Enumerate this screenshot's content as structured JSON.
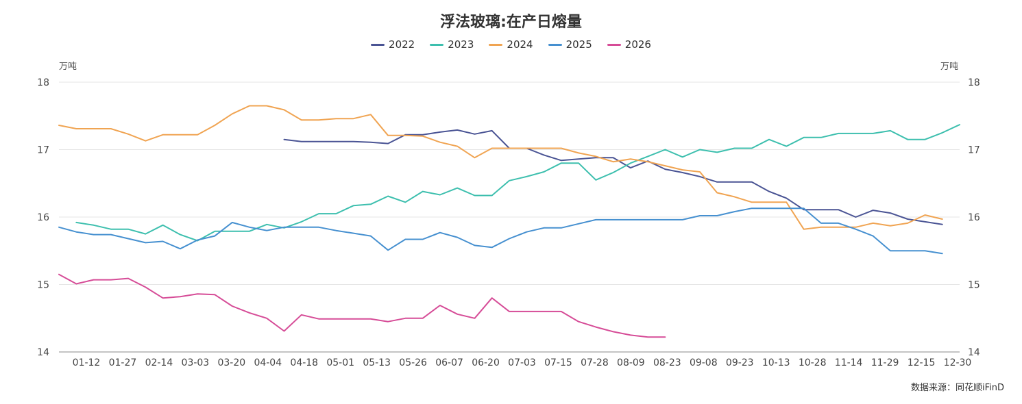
{
  "chart_data": {
    "type": "line",
    "title": "浮法玻璃:在产日熔量",
    "unit_left": "万吨",
    "unit_right": "万吨",
    "source": "数据来源：同花顺iFinD",
    "ylim": [
      14,
      18
    ],
    "yticks": [
      14,
      15,
      16,
      17,
      18
    ],
    "grid": "horizontal",
    "legend_position": "top-center",
    "xtick_labels": [
      "01-12",
      "01-27",
      "02-14",
      "03-03",
      "03-20",
      "04-04",
      "04-18",
      "05-01",
      "05-13",
      "05-26",
      "06-07",
      "06-20",
      "07-03",
      "07-15",
      "07-28",
      "08-09",
      "08-23",
      "09-08",
      "09-23",
      "10-13",
      "10-28",
      "11-14",
      "11-29",
      "12-15",
      "12-30"
    ],
    "series": [
      {
        "name": "2022",
        "color": "#4a5494",
        "points": [
          [
            13,
            17.15
          ],
          [
            14,
            17.12
          ],
          [
            15,
            17.12
          ],
          [
            16,
            17.12
          ],
          [
            17,
            17.12
          ],
          [
            18,
            17.11
          ],
          [
            19,
            17.09
          ],
          [
            20,
            17.22
          ],
          [
            21,
            17.22
          ],
          [
            22,
            17.26
          ],
          [
            23,
            17.29
          ],
          [
            24,
            17.23
          ],
          [
            25,
            17.28
          ],
          [
            26,
            17.02
          ],
          [
            27,
            17.02
          ],
          [
            28,
            16.92
          ],
          [
            29,
            16.84
          ],
          [
            30,
            16.86
          ],
          [
            31,
            16.88
          ],
          [
            32,
            16.88
          ],
          [
            33,
            16.73
          ],
          [
            34,
            16.83
          ],
          [
            35,
            16.71
          ],
          [
            36,
            16.66
          ],
          [
            37,
            16.6
          ],
          [
            38,
            16.52
          ],
          [
            39,
            16.52
          ],
          [
            40,
            16.52
          ],
          [
            41,
            16.38
          ],
          [
            42,
            16.28
          ],
          [
            43,
            16.11
          ],
          [
            44,
            16.11
          ],
          [
            45,
            16.11
          ],
          [
            46,
            16.0
          ],
          [
            47,
            16.1
          ],
          [
            48,
            16.06
          ],
          [
            49,
            15.97
          ],
          [
            50,
            15.93
          ],
          [
            51,
            15.89
          ]
        ]
      },
      {
        "name": "2023",
        "color": "#3dbfae",
        "points": [
          [
            1,
            15.92
          ],
          [
            2,
            15.88
          ],
          [
            3,
            15.82
          ],
          [
            4,
            15.82
          ],
          [
            5,
            15.75
          ],
          [
            6,
            15.88
          ],
          [
            7,
            15.74
          ],
          [
            8,
            15.65
          ],
          [
            9,
            15.79
          ],
          [
            10,
            15.79
          ],
          [
            11,
            15.79
          ],
          [
            12,
            15.89
          ],
          [
            13,
            15.84
          ],
          [
            14,
            15.93
          ],
          [
            15,
            16.05
          ],
          [
            16,
            16.05
          ],
          [
            17,
            16.17
          ],
          [
            18,
            16.19
          ],
          [
            19,
            16.31
          ],
          [
            20,
            16.22
          ],
          [
            21,
            16.38
          ],
          [
            22,
            16.33
          ],
          [
            23,
            16.43
          ],
          [
            24,
            16.32
          ],
          [
            25,
            16.32
          ],
          [
            26,
            16.54
          ],
          [
            27,
            16.6
          ],
          [
            28,
            16.67
          ],
          [
            29,
            16.8
          ],
          [
            30,
            16.8
          ],
          [
            31,
            16.55
          ],
          [
            32,
            16.66
          ],
          [
            33,
            16.8
          ],
          [
            34,
            16.9
          ],
          [
            35,
            17.0
          ],
          [
            36,
            16.89
          ],
          [
            37,
            17.0
          ],
          [
            38,
            16.96
          ],
          [
            39,
            17.02
          ],
          [
            40,
            17.02
          ],
          [
            41,
            17.15
          ],
          [
            42,
            17.05
          ],
          [
            43,
            17.18
          ],
          [
            44,
            17.18
          ],
          [
            45,
            17.24
          ],
          [
            46,
            17.24
          ],
          [
            47,
            17.24
          ],
          [
            48,
            17.28
          ],
          [
            49,
            17.15
          ],
          [
            50,
            17.15
          ],
          [
            51,
            17.25
          ],
          [
            52,
            17.37
          ]
        ]
      },
      {
        "name": "2024",
        "color": "#f0a452",
        "points": [
          [
            0,
            17.36
          ],
          [
            1,
            17.31
          ],
          [
            2,
            17.31
          ],
          [
            3,
            17.31
          ],
          [
            4,
            17.23
          ],
          [
            5,
            17.13
          ],
          [
            6,
            17.22
          ],
          [
            7,
            17.22
          ],
          [
            8,
            17.22
          ],
          [
            9,
            17.36
          ],
          [
            10,
            17.53
          ],
          [
            11,
            17.65
          ],
          [
            12,
            17.65
          ],
          [
            13,
            17.59
          ],
          [
            14,
            17.44
          ],
          [
            15,
            17.44
          ],
          [
            16,
            17.46
          ],
          [
            17,
            17.46
          ],
          [
            18,
            17.52
          ],
          [
            19,
            17.21
          ],
          [
            20,
            17.21
          ],
          [
            21,
            17.2
          ],
          [
            22,
            17.11
          ],
          [
            23,
            17.05
          ],
          [
            24,
            16.88
          ],
          [
            25,
            17.02
          ],
          [
            26,
            17.02
          ],
          [
            27,
            17.02
          ],
          [
            28,
            17.02
          ],
          [
            29,
            17.02
          ],
          [
            30,
            16.95
          ],
          [
            31,
            16.9
          ],
          [
            32,
            16.82
          ],
          [
            33,
            16.86
          ],
          [
            34,
            16.82
          ],
          [
            35,
            16.76
          ],
          [
            36,
            16.7
          ],
          [
            37,
            16.67
          ],
          [
            38,
            16.36
          ],
          [
            39,
            16.3
          ],
          [
            40,
            16.22
          ],
          [
            41,
            16.22
          ],
          [
            42,
            16.22
          ],
          [
            43,
            15.82
          ],
          [
            44,
            15.85
          ],
          [
            45,
            15.85
          ],
          [
            46,
            15.85
          ],
          [
            47,
            15.91
          ],
          [
            48,
            15.87
          ],
          [
            49,
            15.91
          ],
          [
            50,
            16.03
          ],
          [
            51,
            15.97
          ]
        ]
      },
      {
        "name": "2025",
        "color": "#4690d0",
        "points": [
          [
            0,
            15.85
          ],
          [
            1,
            15.78
          ],
          [
            2,
            15.74
          ],
          [
            3,
            15.74
          ],
          [
            4,
            15.68
          ],
          [
            5,
            15.62
          ],
          [
            6,
            15.64
          ],
          [
            7,
            15.53
          ],
          [
            8,
            15.66
          ],
          [
            9,
            15.72
          ],
          [
            10,
            15.92
          ],
          [
            11,
            15.85
          ],
          [
            12,
            15.8
          ],
          [
            13,
            15.85
          ],
          [
            14,
            15.85
          ],
          [
            15,
            15.85
          ],
          [
            16,
            15.8
          ],
          [
            17,
            15.76
          ],
          [
            18,
            15.72
          ],
          [
            19,
            15.51
          ],
          [
            20,
            15.67
          ],
          [
            21,
            15.67
          ],
          [
            22,
            15.77
          ],
          [
            23,
            15.7
          ],
          [
            24,
            15.58
          ],
          [
            25,
            15.55
          ],
          [
            26,
            15.68
          ],
          [
            27,
            15.78
          ],
          [
            28,
            15.84
          ],
          [
            29,
            15.84
          ],
          [
            30,
            15.9
          ],
          [
            31,
            15.96
          ],
          [
            32,
            15.96
          ],
          [
            33,
            15.96
          ],
          [
            34,
            15.96
          ],
          [
            35,
            15.96
          ],
          [
            36,
            15.96
          ],
          [
            37,
            16.02
          ],
          [
            38,
            16.02
          ],
          [
            39,
            16.08
          ],
          [
            40,
            16.13
          ],
          [
            41,
            16.13
          ],
          [
            42,
            16.13
          ],
          [
            43,
            16.13
          ],
          [
            44,
            15.91
          ],
          [
            45,
            15.91
          ],
          [
            46,
            15.82
          ],
          [
            47,
            15.72
          ],
          [
            48,
            15.5
          ],
          [
            49,
            15.5
          ],
          [
            50,
            15.5
          ],
          [
            51,
            15.46
          ]
        ]
      },
      {
        "name": "2026",
        "color": "#d64c97",
        "points": [
          [
            0,
            15.15
          ],
          [
            1,
            15.01
          ],
          [
            2,
            15.07
          ],
          [
            3,
            15.07
          ],
          [
            4,
            15.09
          ],
          [
            5,
            14.96
          ],
          [
            6,
            14.8
          ],
          [
            7,
            14.82
          ],
          [
            8,
            14.86
          ],
          [
            9,
            14.85
          ],
          [
            10,
            14.68
          ],
          [
            11,
            14.58
          ],
          [
            12,
            14.5
          ],
          [
            13,
            14.31
          ],
          [
            14,
            14.55
          ],
          [
            15,
            14.49
          ],
          [
            16,
            14.49
          ],
          [
            17,
            14.49
          ],
          [
            18,
            14.49
          ],
          [
            19,
            14.45
          ],
          [
            20,
            14.5
          ],
          [
            21,
            14.5
          ],
          [
            22,
            14.69
          ],
          [
            23,
            14.56
          ],
          [
            24,
            14.5
          ],
          [
            25,
            14.8
          ],
          [
            26,
            14.6
          ],
          [
            27,
            14.6
          ],
          [
            28,
            14.6
          ],
          [
            29,
            14.6
          ],
          [
            30,
            14.45
          ],
          [
            31,
            14.37
          ],
          [
            32,
            14.3
          ],
          [
            33,
            14.25
          ],
          [
            34,
            14.22
          ],
          [
            35,
            14.22
          ]
        ]
      }
    ]
  }
}
